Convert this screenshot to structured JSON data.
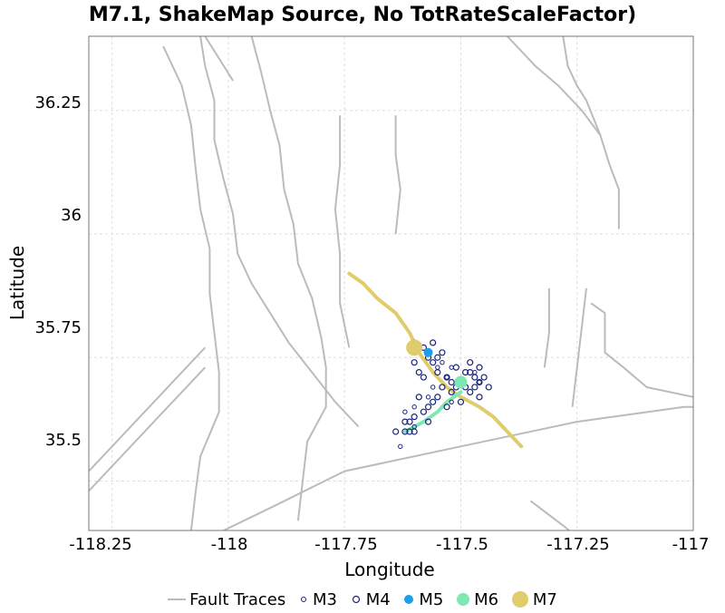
{
  "chart_data": {
    "type": "map",
    "title": "M7.1, ShakeMap Source, No TotRateScaleFactor)",
    "xlabel": "Longitude",
    "ylabel": "Latitude",
    "xlim": [
      -118.3,
      -117.0
    ],
    "ylim": [
      35.4,
      36.4
    ],
    "xticks": [
      "-118.25",
      "-118",
      "-117.75",
      "-117.5",
      "-117.25",
      "-117"
    ],
    "yticks": [
      "36.25",
      "36",
      "35.75",
      "35.5"
    ],
    "grid": true,
    "legend_position": "bottom",
    "legend": [
      {
        "label": "Fault Traces",
        "kind": "line",
        "color": "#bbbbbb"
      },
      {
        "label": "M3",
        "kind": "open-circle-small",
        "color": "#1a237e"
      },
      {
        "label": "M4",
        "kind": "open-circle",
        "color": "#1a237e"
      },
      {
        "label": "M5",
        "kind": "filled-circle",
        "color": "#1e9de8"
      },
      {
        "label": "M6",
        "kind": "filled-circle",
        "color": "#7de8b4"
      },
      {
        "label": "M7",
        "kind": "filled-circle-large",
        "color": "#e0cc6a"
      }
    ],
    "fault_traces": [
      [
        [
          -118.06,
          36.4
        ],
        [
          -118.05,
          36.34
        ],
        [
          -118.03,
          36.27
        ],
        [
          -118.03,
          36.19
        ],
        [
          -118.01,
          36.11
        ],
        [
          -117.99,
          36.04
        ],
        [
          -117.98,
          35.96
        ],
        [
          -117.95,
          35.9
        ],
        [
          -117.91,
          35.84
        ],
        [
          -117.87,
          35.78
        ],
        [
          -117.82,
          35.72
        ],
        [
          -117.77,
          35.66
        ],
        [
          -117.72,
          35.61
        ]
      ],
      [
        [
          -118.05,
          36.4
        ],
        [
          -117.99,
          36.31
        ]
      ],
      [
        [
          -117.4,
          36.4
        ],
        [
          -117.34,
          36.34
        ],
        [
          -117.29,
          36.3
        ],
        [
          -117.24,
          36.25
        ],
        [
          -117.2,
          36.2
        ],
        [
          -117.18,
          36.14
        ],
        [
          -117.16,
          36.09
        ],
        [
          -117.16,
          36.01
        ]
      ],
      [
        [
          -117.35,
          35.46
        ],
        [
          -117.28,
          35.41
        ],
        [
          -117.24,
          35.38
        ]
      ],
      [
        [
          -118.2,
          35.4
        ],
        [
          -118.12,
          35.36
        ],
        [
          -117.98,
          35.31
        ],
        [
          -117.85,
          35.27
        ],
        [
          -117.72,
          35.23
        ]
      ],
      [
        [
          -118.01,
          35.4
        ],
        [
          -117.9,
          35.45
        ],
        [
          -117.75,
          35.52
        ],
        [
          -117.5,
          35.57
        ],
        [
          -117.25,
          35.62
        ],
        [
          -117.02,
          35.65
        ],
        [
          -117.0,
          35.65
        ]
      ],
      [
        [
          -117.22,
          35.86
        ],
        [
          -117.19,
          35.84
        ],
        [
          -117.19,
          35.76
        ],
        [
          -117.15,
          35.73
        ],
        [
          -117.1,
          35.69
        ],
        [
          -117.0,
          35.67
        ]
      ],
      [
        [
          -117.28,
          36.4
        ],
        [
          -117.27,
          36.34
        ],
        [
          -117.25,
          36.3
        ],
        [
          -117.23,
          36.27
        ],
        [
          -117.2,
          36.2
        ]
      ],
      [
        [
          -118.3,
          35.52
        ],
        [
          -118.25,
          35.57
        ],
        [
          -118.2,
          35.62
        ],
        [
          -118.15,
          35.67
        ],
        [
          -118.1,
          35.72
        ],
        [
          -118.05,
          35.77
        ]
      ],
      [
        [
          -118.3,
          35.48
        ],
        [
          -118.25,
          35.53
        ],
        [
          -118.2,
          35.58
        ],
        [
          -118.15,
          35.63
        ],
        [
          -118.1,
          35.68
        ],
        [
          -118.05,
          35.73
        ]
      ],
      [
        [
          -118.14,
          36.38
        ],
        [
          -118.1,
          36.3
        ],
        [
          -118.08,
          36.22
        ],
        [
          -118.07,
          36.13
        ],
        [
          -118.06,
          36.05
        ],
        [
          -118.04,
          35.97
        ],
        [
          -118.04,
          35.88
        ],
        [
          -118.03,
          35.8
        ],
        [
          -118.02,
          35.72
        ],
        [
          -118.02,
          35.64
        ],
        [
          -118.06,
          35.55
        ],
        [
          -118.07,
          35.48
        ],
        [
          -118.08,
          35.4
        ]
      ],
      [
        [
          -117.95,
          36.4
        ],
        [
          -117.93,
          36.33
        ],
        [
          -117.91,
          36.25
        ],
        [
          -117.89,
          36.18
        ],
        [
          -117.88,
          36.09
        ],
        [
          -117.86,
          36.02
        ],
        [
          -117.85,
          35.94
        ],
        [
          -117.82,
          35.87
        ],
        [
          -117.8,
          35.79
        ],
        [
          -117.79,
          35.73
        ],
        [
          -117.79,
          35.65
        ],
        [
          -117.83,
          35.58
        ],
        [
          -117.84,
          35.5
        ],
        [
          -117.85,
          35.42
        ]
      ],
      [
        [
          -117.76,
          36.24
        ],
        [
          -117.76,
          36.14
        ],
        [
          -117.77,
          36.05
        ],
        [
          -117.76,
          35.96
        ],
        [
          -117.76,
          35.86
        ],
        [
          -117.74,
          35.77
        ]
      ],
      [
        [
          -117.64,
          36.24
        ],
        [
          -117.64,
          36.16
        ],
        [
          -117.63,
          36.09
        ],
        [
          -117.64,
          36.0
        ]
      ],
      [
        [
          -117.23,
          35.89
        ],
        [
          -117.24,
          35.81
        ],
        [
          -117.25,
          35.73
        ],
        [
          -117.26,
          35.65
        ]
      ],
      [
        [
          -117.31,
          35.89
        ],
        [
          -117.31,
          35.8
        ],
        [
          -117.32,
          35.73
        ]
      ]
    ],
    "ruptures": {
      "M7_trace": [
        [
          -117.74,
          35.92
        ],
        [
          -117.71,
          35.9
        ],
        [
          -117.68,
          35.87
        ],
        [
          -117.64,
          35.84
        ],
        [
          -117.61,
          35.8
        ],
        [
          -117.59,
          35.76
        ],
        [
          -117.56,
          35.72
        ],
        [
          -117.53,
          35.69
        ],
        [
          -117.5,
          35.67
        ],
        [
          -117.46,
          35.65
        ],
        [
          -117.43,
          35.63
        ],
        [
          -117.4,
          35.6
        ],
        [
          -117.37,
          35.57
        ]
      ],
      "M6_trace": [
        [
          -117.62,
          35.6
        ],
        [
          -117.58,
          35.62
        ],
        [
          -117.55,
          35.64
        ],
        [
          -117.53,
          35.66
        ],
        [
          -117.5,
          35.68
        ]
      ],
      "M7_hypocenter": [
        -117.6,
        35.77
      ],
      "M6_hypocenter": [
        -117.5,
        35.7
      ],
      "M5_points": [
        [
          -117.57,
          35.76
        ]
      ]
    },
    "aftershocks_M3": [
      [
        -117.63,
        35.57
      ],
      [
        -117.62,
        35.64
      ],
      [
        -117.6,
        35.65
      ],
      [
        -117.55,
        35.73
      ],
      [
        -117.54,
        35.74
      ],
      [
        -117.46,
        35.7
      ],
      [
        -117.47,
        35.72
      ],
      [
        -117.52,
        35.66
      ],
      [
        -117.6,
        35.61
      ],
      [
        -117.57,
        35.67
      ],
      [
        -117.56,
        35.69
      ],
      [
        -117.53,
        35.71
      ],
      [
        -117.52,
        35.73
      ]
    ],
    "aftershocks_M4": [
      [
        -117.6,
        35.78
      ],
      [
        -117.58,
        35.77
      ],
      [
        -117.57,
        35.75
      ],
      [
        -117.56,
        35.74
      ],
      [
        -117.55,
        35.72
      ],
      [
        -117.53,
        35.71
      ],
      [
        -117.52,
        35.7
      ],
      [
        -117.51,
        35.69
      ],
      [
        -117.49,
        35.69
      ],
      [
        -117.48,
        35.68
      ],
      [
        -117.47,
        35.69
      ],
      [
        -117.46,
        35.7
      ],
      [
        -117.49,
        35.72
      ],
      [
        -117.47,
        35.71
      ],
      [
        -117.48,
        35.72
      ],
      [
        -117.46,
        35.73
      ],
      [
        -117.52,
        35.68
      ],
      [
        -117.54,
        35.69
      ],
      [
        -117.55,
        35.67
      ],
      [
        -117.56,
        35.66
      ],
      [
        -117.57,
        35.65
      ],
      [
        -117.58,
        35.64
      ],
      [
        -117.6,
        35.63
      ],
      [
        -117.61,
        35.62
      ],
      [
        -117.62,
        35.6
      ],
      [
        -117.61,
        35.6
      ],
      [
        -117.6,
        35.6
      ],
      [
        -117.64,
        35.6
      ],
      [
        -117.6,
        35.74
      ],
      [
        -117.59,
        35.72
      ],
      [
        -117.45,
        35.71
      ],
      [
        -117.44,
        35.69
      ],
      [
        -117.5,
        35.66
      ],
      [
        -117.53,
        35.65
      ],
      [
        -117.59,
        35.67
      ],
      [
        -117.58,
        35.71
      ],
      [
        -117.57,
        35.62
      ],
      [
        -117.62,
        35.62
      ],
      [
        -117.54,
        35.76
      ],
      [
        -117.55,
        35.75
      ],
      [
        -117.56,
        35.78
      ],
      [
        -117.51,
        35.73
      ],
      [
        -117.48,
        35.74
      ],
      [
        -117.46,
        35.67
      ]
    ]
  }
}
